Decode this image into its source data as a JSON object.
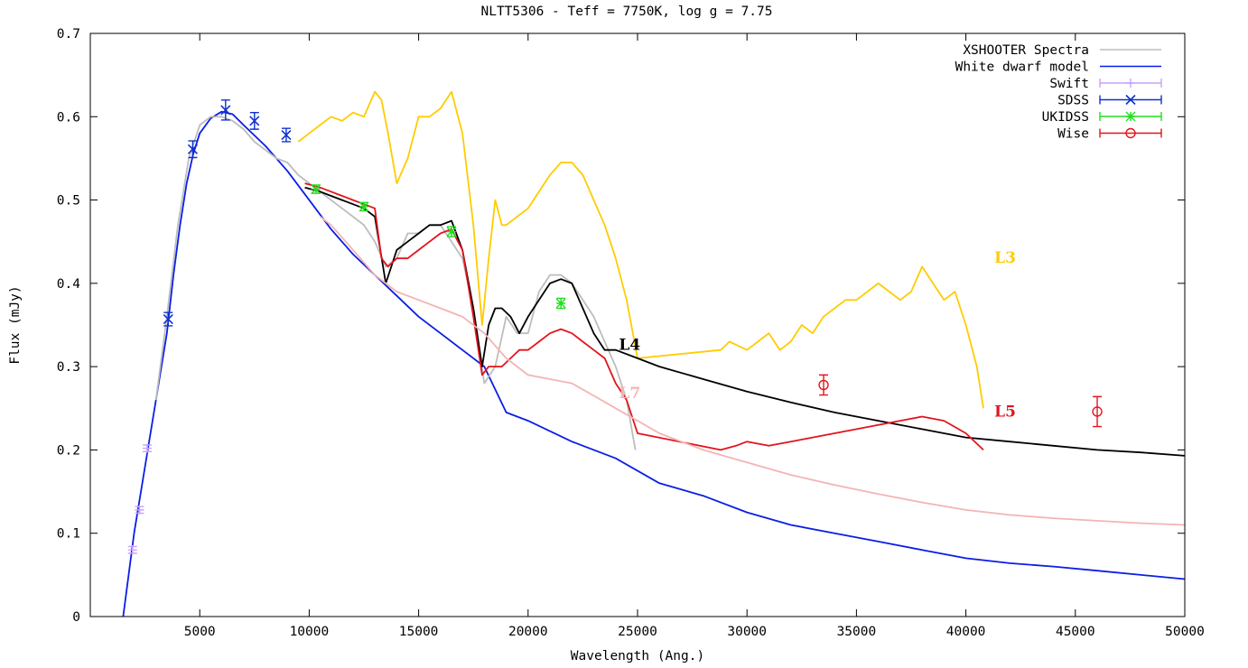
{
  "chart_data": {
    "type": "line",
    "title": "NLTT5306 - Teff = 7750K, log g = 7.75",
    "xlabel": "Wavelength (Ang.)",
    "ylabel": "Flux (mJy)",
    "xlim": [
      0,
      50000
    ],
    "ylim": [
      0,
      0.7
    ],
    "xticks": [
      5000,
      10000,
      15000,
      20000,
      25000,
      30000,
      35000,
      40000,
      45000,
      50000
    ],
    "yticks": [
      0,
      0.1,
      0.2,
      0.3,
      0.4,
      0.5,
      0.6,
      0.7
    ],
    "xtick_labels": [
      "5000",
      "10000",
      "15000",
      "20000",
      "25000",
      "30000",
      "35000",
      "40000",
      "45000",
      "50000"
    ],
    "ytick_labels": [
      "0",
      "0.1",
      "0.2",
      "0.3",
      "0.4",
      "0.5",
      "0.6",
      "0.7"
    ],
    "grid": false,
    "legend_position": "top-right",
    "colors": {
      "spectra": "#bdbdbd",
      "model": "#0a1ee6",
      "swift": "#c9a0ff",
      "sdss": "#1030d0",
      "ukidss": "#22dd22",
      "wise": "#e3141c",
      "L3": "#ffcc00",
      "L4": "#000000",
      "L5": "#e3141c",
      "L7": "#f4b4b4"
    },
    "legend": [
      {
        "label": "XSHOOTER Spectra",
        "kind": "line",
        "color": "#bdbdbd"
      },
      {
        "label": "White dwarf model",
        "kind": "line",
        "color": "#0a1ee6"
      },
      {
        "label": "Swift",
        "kind": "plus",
        "color": "#c9a0ff"
      },
      {
        "label": "SDSS",
        "kind": "cross",
        "color": "#1030d0"
      },
      {
        "label": "UKIDSS",
        "kind": "star",
        "color": "#22dd22"
      },
      {
        "label": "Wise",
        "kind": "circle",
        "color": "#e3141c"
      }
    ],
    "annotations": [
      {
        "text": "L3",
        "x": 41300,
        "y": 0.425,
        "color": "#ffcc00"
      },
      {
        "text": "L4",
        "x": 24150,
        "y": 0.32,
        "color": "#000000"
      },
      {
        "text": "L5",
        "x": 41300,
        "y": 0.24,
        "color": "#e3141c"
      },
      {
        "text": "L7",
        "x": 24150,
        "y": 0.262,
        "color": "#f4b4b4"
      }
    ],
    "series": [
      {
        "name": "White dwarf model",
        "kind": "line",
        "color": "#0a1ee6",
        "x": [
          1500,
          2000,
          2500,
          3000,
          3500,
          3800,
          4100,
          4400,
          4700,
          5000,
          5500,
          6000,
          6500,
          7000,
          8000,
          9000,
          10000,
          11000,
          12000,
          13000,
          14000,
          15000,
          16000,
          17000,
          18000,
          19000,
          20000,
          22000,
          24000,
          26000,
          28000,
          30000,
          32000,
          34000,
          36000,
          38000,
          40000,
          42000,
          44000,
          46000,
          48000,
          50000
        ],
        "y": [
          0.0,
          0.1,
          0.18,
          0.26,
          0.34,
          0.41,
          0.47,
          0.52,
          0.555,
          0.58,
          0.598,
          0.606,
          0.603,
          0.59,
          0.565,
          0.535,
          0.5,
          0.465,
          0.435,
          0.41,
          0.385,
          0.36,
          0.34,
          0.32,
          0.3,
          0.245,
          0.235,
          0.21,
          0.19,
          0.16,
          0.145,
          0.125,
          0.11,
          0.1,
          0.09,
          0.08,
          0.07,
          0.064,
          0.06,
          0.055,
          0.05,
          0.045
        ]
      },
      {
        "name": "XSHOOTER Spectra",
        "kind": "line",
        "color": "#bdbdbd",
        "x": [
          3000,
          3500,
          4000,
          4500,
          5000,
          5500,
          6000,
          6500,
          7000,
          7500,
          8000,
          8500,
          9000,
          9500,
          10000,
          10500,
          11000,
          11500,
          12000,
          12500,
          13000,
          13500,
          14000,
          14500,
          15000,
          15500,
          16000,
          16500,
          17000,
          17500,
          18000,
          18500,
          19000,
          19500,
          20000,
          20500,
          21000,
          21500,
          22000,
          22500,
          23000,
          23500,
          24000,
          24500,
          24900
        ],
        "y": [
          0.26,
          0.36,
          0.47,
          0.55,
          0.59,
          0.6,
          0.6,
          0.595,
          0.585,
          0.57,
          0.56,
          0.55,
          0.545,
          0.53,
          0.52,
          0.51,
          0.5,
          0.49,
          0.48,
          0.47,
          0.45,
          0.42,
          0.43,
          0.46,
          0.46,
          0.47,
          0.47,
          0.45,
          0.43,
          0.37,
          0.28,
          0.3,
          0.36,
          0.34,
          0.34,
          0.39,
          0.41,
          0.41,
          0.4,
          0.38,
          0.36,
          0.33,
          0.3,
          0.26,
          0.2
        ]
      },
      {
        "name": "L3",
        "kind": "line",
        "color": "#ffcc00",
        "x": [
          9500,
          10000,
          10500,
          11000,
          11500,
          12000,
          12500,
          13000,
          13300,
          13600,
          14000,
          14500,
          15000,
          15500,
          16000,
          16500,
          17000,
          17500,
          17900,
          18200,
          18500,
          18800,
          19000,
          19500,
          20000,
          20500,
          21000,
          21500,
          22000,
          22500,
          23000,
          23500,
          24000,
          24500,
          25000,
          28800,
          29200,
          30000,
          30500,
          31000,
          31500,
          32000,
          32500,
          33000,
          33500,
          34000,
          34500,
          35000,
          35500,
          36000,
          36500,
          37000,
          37500,
          38000,
          38500,
          39000,
          39500,
          40000,
          40500,
          40800
        ],
        "y": [
          0.57,
          0.58,
          0.59,
          0.6,
          0.595,
          0.605,
          0.6,
          0.63,
          0.62,
          0.58,
          0.52,
          0.55,
          0.6,
          0.6,
          0.61,
          0.63,
          0.58,
          0.47,
          0.35,
          0.43,
          0.5,
          0.47,
          0.47,
          0.48,
          0.49,
          0.51,
          0.53,
          0.545,
          0.545,
          0.53,
          0.5,
          0.47,
          0.43,
          0.38,
          0.31,
          0.32,
          0.33,
          0.32,
          0.33,
          0.34,
          0.32,
          0.33,
          0.35,
          0.34,
          0.36,
          0.37,
          0.38,
          0.38,
          0.39,
          0.4,
          0.39,
          0.38,
          0.39,
          0.42,
          0.4,
          0.38,
          0.39,
          0.35,
          0.3,
          0.25
        ]
      },
      {
        "name": "L4",
        "kind": "line",
        "color": "#000000",
        "x": [
          9800,
          10500,
          11000,
          11500,
          12000,
          12500,
          13000,
          13500,
          14000,
          14500,
          15000,
          15500,
          16000,
          16500,
          17000,
          17500,
          17900,
          18200,
          18500,
          18800,
          19200,
          19600,
          20000,
          20500,
          21000,
          21500,
          22000,
          22500,
          23000,
          23500,
          24000,
          25000,
          26000,
          28000,
          30000,
          32000,
          34000,
          36000,
          38000,
          40000,
          42000,
          44000,
          46000,
          48000,
          50000
        ],
        "y": [
          0.515,
          0.51,
          0.505,
          0.5,
          0.495,
          0.49,
          0.48,
          0.4,
          0.44,
          0.45,
          0.46,
          0.47,
          0.47,
          0.475,
          0.44,
          0.37,
          0.3,
          0.35,
          0.37,
          0.37,
          0.36,
          0.34,
          0.36,
          0.38,
          0.4,
          0.405,
          0.4,
          0.37,
          0.34,
          0.32,
          0.32,
          0.31,
          0.3,
          0.285,
          0.27,
          0.257,
          0.245,
          0.235,
          0.225,
          0.215,
          0.21,
          0.205,
          0.2,
          0.197,
          0.193
        ]
      },
      {
        "name": "L5",
        "kind": "line",
        "color": "#e3141c",
        "x": [
          9800,
          10500,
          11000,
          11500,
          12000,
          12500,
          13000,
          13300,
          13600,
          14000,
          14500,
          15000,
          15500,
          16000,
          16500,
          17000,
          17500,
          17900,
          18200,
          18500,
          18800,
          19200,
          19600,
          20000,
          20500,
          21000,
          21500,
          22000,
          22500,
          23000,
          23500,
          24000,
          24500,
          25000,
          28800,
          29500,
          30000,
          31000,
          32000,
          33000,
          34000,
          35000,
          36000,
          37000,
          38000,
          39000,
          40000,
          40800
        ],
        "y": [
          0.52,
          0.515,
          0.51,
          0.505,
          0.5,
          0.495,
          0.49,
          0.43,
          0.42,
          0.43,
          0.43,
          0.44,
          0.45,
          0.46,
          0.465,
          0.44,
          0.36,
          0.29,
          0.3,
          0.3,
          0.3,
          0.31,
          0.32,
          0.32,
          0.33,
          0.34,
          0.345,
          0.34,
          0.33,
          0.32,
          0.31,
          0.28,
          0.26,
          0.22,
          0.2,
          0.205,
          0.21,
          0.205,
          0.21,
          0.215,
          0.22,
          0.225,
          0.23,
          0.235,
          0.24,
          0.235,
          0.22,
          0.2
        ]
      },
      {
        "name": "L7",
        "kind": "line",
        "color": "#f4b4b4",
        "x": [
          10500,
          11000,
          12000,
          13000,
          14000,
          15000,
          16000,
          17000,
          18000,
          19000,
          20000,
          21000,
          22000,
          23000,
          24000,
          25000,
          26000,
          28000,
          30000,
          32000,
          34000,
          36000,
          38000,
          40000,
          42000,
          44000,
          46000,
          48000,
          50000
        ],
        "y": [
          0.48,
          0.47,
          0.44,
          0.41,
          0.39,
          0.38,
          0.37,
          0.36,
          0.34,
          0.31,
          0.29,
          0.285,
          0.28,
          0.265,
          0.25,
          0.235,
          0.22,
          0.2,
          0.185,
          0.17,
          0.158,
          0.147,
          0.137,
          0.128,
          0.122,
          0.118,
          0.115,
          0.112,
          0.11
        ]
      },
      {
        "name": "Swift",
        "kind": "points",
        "marker": "plus",
        "color": "#c9a0ff",
        "x": [
          1928,
          2246,
          2600
        ],
        "y": [
          0.08,
          0.128,
          0.202
        ],
        "err": [
          0.004,
          0.004,
          0.004
        ]
      },
      {
        "name": "SDSS",
        "kind": "points",
        "marker": "cross",
        "color": "#1030d0",
        "x": [
          3560,
          4680,
          6180,
          7500,
          8950
        ],
        "y": [
          0.357,
          0.561,
          0.608,
          0.595,
          0.578
        ],
        "err": [
          0.008,
          0.01,
          0.012,
          0.01,
          0.008
        ]
      },
      {
        "name": "UKIDSS",
        "kind": "points",
        "marker": "star",
        "color": "#22dd22",
        "x": [
          10300,
          12500,
          16500,
          21500
        ],
        "y": [
          0.513,
          0.492,
          0.462,
          0.376
        ],
        "err": [
          0.005,
          0.005,
          0.006,
          0.006
        ]
      },
      {
        "name": "Wise",
        "kind": "points",
        "marker": "circle",
        "color": "#e3141c",
        "x": [
          33500,
          46000
        ],
        "y": [
          0.278,
          0.246
        ],
        "err": [
          0.012,
          0.018
        ]
      }
    ]
  }
}
